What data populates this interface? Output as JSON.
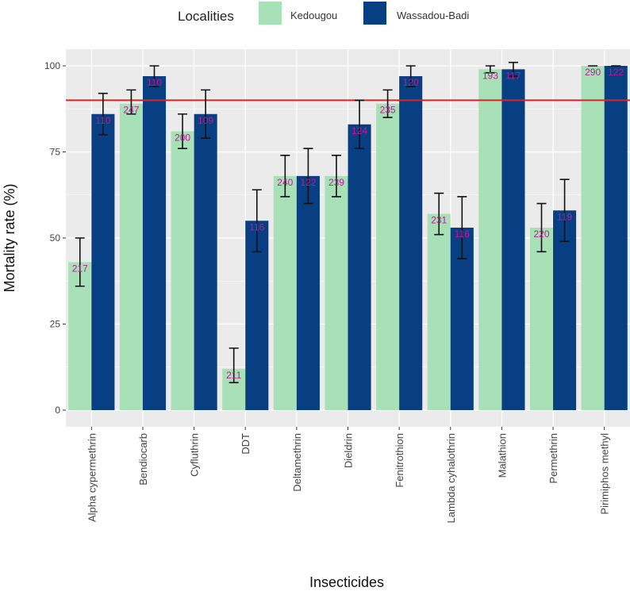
{
  "chart_data": {
    "type": "bar",
    "title": "",
    "xlabel": "Insecticides",
    "ylabel": "Mortality rate (%)",
    "ylim": [
      0,
      100
    ],
    "yticks": [
      "0",
      "25",
      "50",
      "75",
      "100"
    ],
    "threshold": 90,
    "legend": {
      "title": "Localities",
      "placement": "top"
    },
    "categories": [
      "Alpha cypermethrin",
      "Bendiocarb",
      "Cyfluthrin",
      "DDT",
      "Deltamethrin",
      "Dieldrin",
      "Fenitrothion",
      "Lambda cyhalothrin",
      "Malathion",
      "Permethrin",
      "Pirimiphos methyl"
    ],
    "series": [
      {
        "name": "Kedougou",
        "color": "#a8e0b8",
        "values": [
          43,
          89,
          81,
          12,
          68,
          68,
          89,
          57,
          99,
          53,
          100
        ],
        "err_low": [
          36,
          86,
          76,
          8,
          62,
          62,
          85,
          51,
          98,
          46,
          100
        ],
        "err_high": [
          50,
          93,
          86,
          18,
          74,
          74,
          93,
          63,
          100,
          60,
          100
        ],
        "n_labels": [
          "217",
          "247",
          "200",
          "211",
          "240",
          "239",
          "235",
          "231",
          "193",
          "220",
          "290"
        ]
      },
      {
        "name": "Wassadou-Badi",
        "color": "#073f82",
        "values": [
          86,
          97,
          86,
          55,
          68,
          83,
          97,
          53,
          99,
          58,
          100
        ],
        "err_low": [
          80,
          94,
          79,
          46,
          60,
          76,
          94,
          44,
          97,
          49,
          100
        ],
        "err_high": [
          92,
          100,
          93,
          64,
          76,
          90,
          100,
          62,
          101,
          67,
          100
        ],
        "n_labels": [
          "110",
          "110",
          "109",
          "116",
          "122",
          "124",
          "120",
          "116",
          "117",
          "119",
          "122"
        ]
      }
    ],
    "colors": {
      "panel": "#ebebeb",
      "grid": "#ffffff",
      "threshold": "#d62728",
      "label": "#c2189b"
    }
  }
}
